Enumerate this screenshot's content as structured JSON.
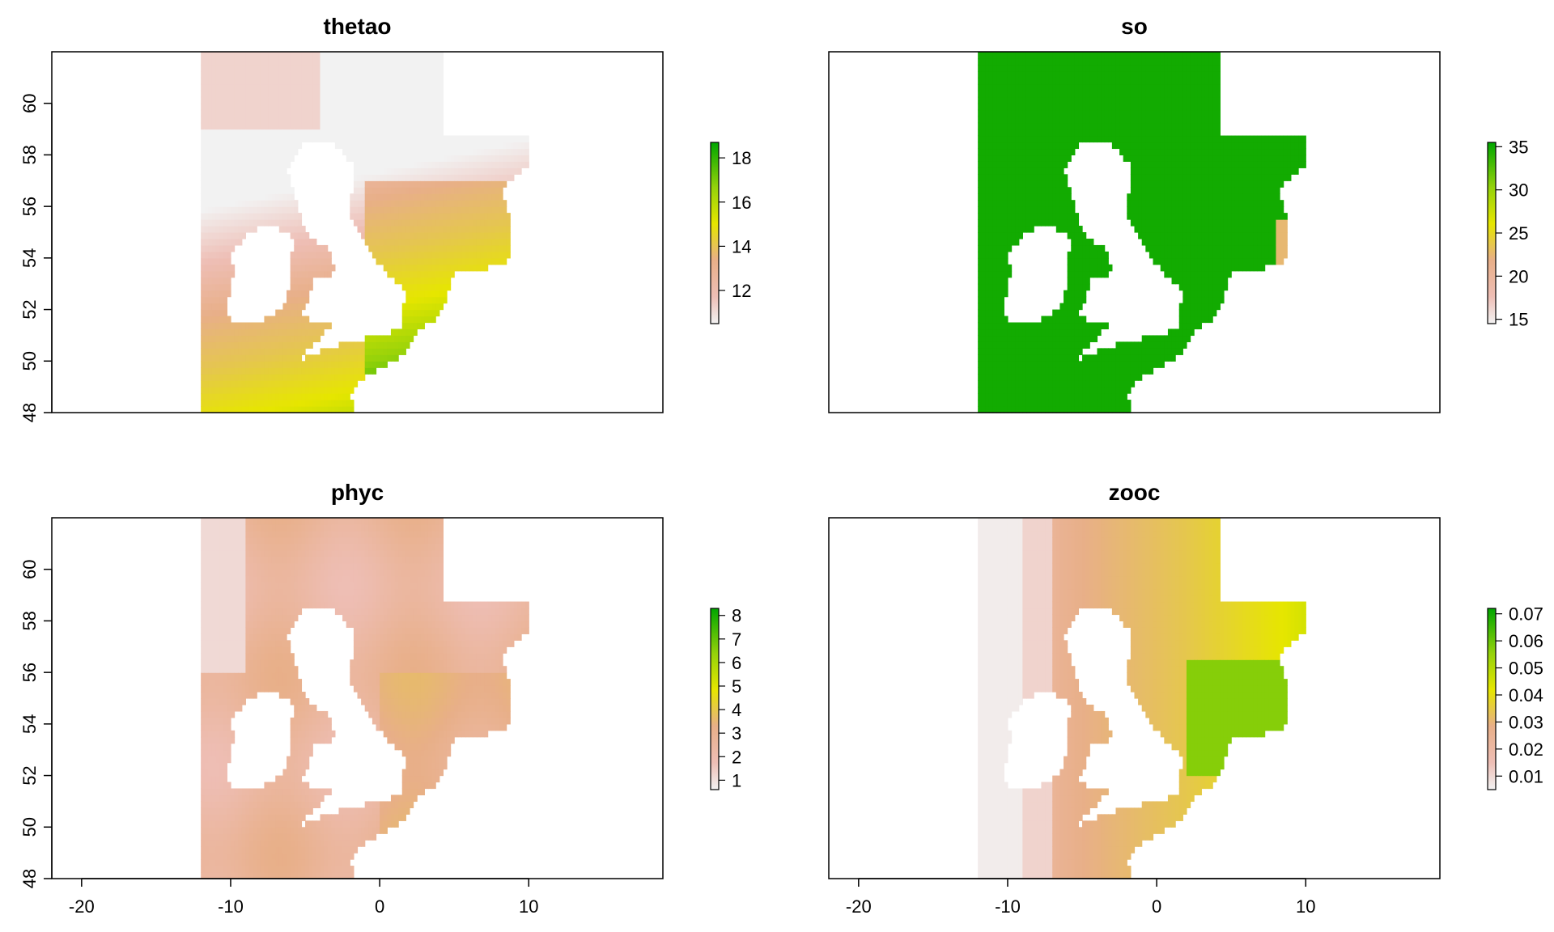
{
  "chart_data": [
    {
      "type": "heatmap",
      "title": "thetao",
      "variable": "thetao",
      "xlim": [
        -22,
        19
      ],
      "ylim": [
        48,
        62
      ],
      "x_ticks": [],
      "y_ticks": [
        48,
        50,
        52,
        54,
        56,
        58,
        60
      ],
      "y_tick_labels": [
        "48",
        "50",
        "52",
        "54",
        "56",
        "58",
        "60"
      ],
      "colorbar": {
        "min": 10.5,
        "max": 18.7,
        "ticks": [
          12,
          14,
          16,
          18
        ],
        "labels": [
          "12",
          "14",
          "16",
          "18"
        ]
      },
      "data_range": [
        10.5,
        18.7
      ],
      "note_spatial_pattern": "cool (pink/white) in the north-west, warmest (green) in the south-west and southern North Sea"
    },
    {
      "type": "heatmap",
      "title": "so",
      "variable": "so",
      "xlim": [
        -22,
        19
      ],
      "ylim": [
        48,
        62
      ],
      "x_ticks": [],
      "y_ticks": [],
      "colorbar": {
        "min": 14.5,
        "max": 35.5,
        "ticks": [
          15,
          20,
          25,
          30,
          35
        ],
        "labels": [
          "15",
          "20",
          "25",
          "30",
          "35"
        ]
      },
      "data_range": [
        14.5,
        35.5
      ],
      "note_spatial_pattern": "near-uniform high salinity (green), low values only at the far east edge"
    },
    {
      "type": "heatmap",
      "title": "phyc",
      "variable": "phyc",
      "xlim": [
        -22,
        19
      ],
      "ylim": [
        48,
        62
      ],
      "x_ticks": [
        -20,
        -10,
        0,
        10
      ],
      "x_tick_labels": [
        "-20",
        "-10",
        "0",
        "10"
      ],
      "y_ticks": [
        48,
        50,
        52,
        54,
        56,
        58,
        60
      ],
      "y_tick_labels": [
        "48",
        "50",
        "52",
        "54",
        "56",
        "58",
        "60"
      ],
      "colorbar": {
        "min": 0.6,
        "max": 8.3,
        "ticks": [
          1,
          2,
          3,
          4,
          5,
          6,
          7,
          8
        ],
        "labels": [
          "1",
          "2",
          "3",
          "4",
          "5",
          "6",
          "7",
          "8"
        ]
      },
      "data_range": [
        0.6,
        8.3
      ],
      "note_spatial_pattern": "mostly 1–3, higher (yellow/green) along coastlines"
    },
    {
      "type": "heatmap",
      "title": "zooc",
      "variable": "zooc",
      "xlim": [
        -22,
        19
      ],
      "ylim": [
        48,
        62
      ],
      "x_ticks": [
        -20,
        -10,
        0,
        10
      ],
      "x_tick_labels": [
        "-20",
        "-10",
        "0",
        "10"
      ],
      "y_ticks": [],
      "colorbar": {
        "min": 0.005,
        "max": 0.072,
        "ticks": [
          0.01,
          0.02,
          0.03,
          0.04,
          0.05,
          0.06,
          0.07
        ],
        "labels": [
          "0.01",
          "0.02",
          "0.03",
          "0.04",
          "0.05",
          "0.06",
          "0.07"
        ]
      },
      "data_range": [
        0.005,
        0.072
      ],
      "note_spatial_pattern": "very low in the Atlantic west, highest (green) in the south-eastern North Sea"
    }
  ],
  "palette": [
    "#F2F2F2",
    "#EEBEB5",
    "#E8AF88",
    "#E5C64F",
    "#E6E600",
    "#95D20A",
    "#00A600"
  ]
}
